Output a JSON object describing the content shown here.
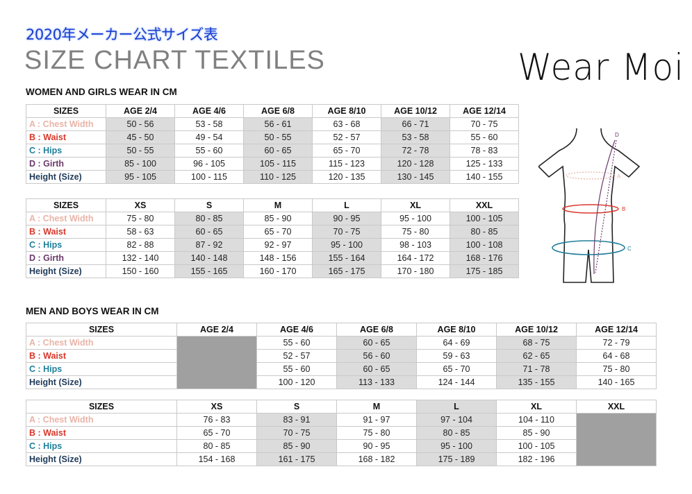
{
  "header": {
    "japanese_title": "2020年メーカー公式サイズ表",
    "title": "SIZE CHART TEXTILES",
    "logo": "Wear Moi"
  },
  "colors": {
    "chest": "#e8b4a8",
    "waist": "#d9372a",
    "hips": "#1f7f9a",
    "girth": "#6b3a6b",
    "height": "#1f3a5a",
    "shade": "#dcdcdc",
    "unavailable": "#a0a0a0"
  },
  "diagram": {
    "labels": [
      "A",
      "B",
      "C",
      "D"
    ]
  },
  "women": {
    "heading": "WOMEN AND GIRLS WEAR IN CM",
    "tables": [
      {
        "headers": [
          "SIZES",
          "AGE 2/4",
          "AGE 4/6",
          "AGE 6/8",
          "AGE 8/10",
          "AGE 10/12",
          "AGE 12/14"
        ],
        "shaded_columns": [
          1,
          3,
          5
        ],
        "shaded_header": [],
        "unavailable_columns": [],
        "rows": [
          {
            "key": "chest",
            "label": "A : Chest Width",
            "values": [
              "50 - 56",
              "53 - 58",
              "56 - 61",
              "63 - 68",
              "66 - 71",
              "70 - 75"
            ]
          },
          {
            "key": "waist",
            "label": "B : Waist",
            "values": [
              "45 - 50",
              "49  - 54",
              "50 - 55",
              "52 - 57",
              "53 - 58",
              "55 - 60"
            ]
          },
          {
            "key": "hips",
            "label": "C : Hips",
            "values": [
              "50 - 55",
              "55 - 60",
              "60 - 65",
              "65 - 70",
              "72 - 78",
              "78 - 83"
            ]
          },
          {
            "key": "girth",
            "label": "D : Girth",
            "values": [
              "85 - 100",
              "96 - 105",
              "105 - 115",
              "115 - 123",
              "120 - 128",
              "125 - 133"
            ]
          },
          {
            "key": "height",
            "label": "Height (Size)",
            "values": [
              "95 - 105",
              "100 - 115",
              "110 - 125",
              "120 - 135",
              "130 - 145",
              "140 - 155"
            ]
          }
        ]
      },
      {
        "headers": [
          "SIZES",
          "XS",
          "S",
          "M",
          "L",
          "XL",
          "XXL"
        ],
        "shaded_columns": [
          2,
          4,
          6
        ],
        "shaded_header": [],
        "unavailable_columns": [],
        "rows": [
          {
            "key": "chest",
            "label": "A : Chest Width",
            "values": [
              "75 - 80",
              "80 - 85",
              "85 - 90",
              "90 - 95",
              "95 - 100",
              "100 - 105"
            ]
          },
          {
            "key": "waist",
            "label": "B : Waist",
            "values": [
              "58 - 63",
              "60 - 65",
              "65 - 70",
              "70 - 75",
              "75 - 80",
              "80 - 85"
            ]
          },
          {
            "key": "hips",
            "label": "C : Hips",
            "values": [
              "82 - 88",
              "87 - 92",
              "92 - 97",
              "95 - 100",
              "98 - 103",
              "100 - 108"
            ]
          },
          {
            "key": "girth",
            "label": "D : Girth",
            "values": [
              "132 - 140",
              "140 - 148",
              "148 - 156",
              "155 - 164",
              "164 - 172",
              "168 - 176"
            ]
          },
          {
            "key": "height",
            "label": "Height (Size)",
            "values": [
              "150 - 160",
              "155 - 165",
              "160 - 170",
              "165 - 175",
              "170 - 180",
              "175 - 185"
            ]
          }
        ]
      }
    ]
  },
  "men": {
    "heading": "MEN AND BOYS WEAR IN CM",
    "tables": [
      {
        "headers": [
          "SIZES",
          "AGE 2/4",
          "AGE 4/6",
          "AGE 6/8",
          "AGE 8/10",
          "AGE 10/12",
          "AGE 12/14"
        ],
        "shaded_columns": [
          3,
          5
        ],
        "shaded_header": [],
        "unavailable_columns": [
          1
        ],
        "rows": [
          {
            "key": "chest",
            "label": "A : Chest Width",
            "values": [
              "",
              "55 - 60",
              "60 - 65",
              "64 - 69",
              "68 - 75",
              "72 - 79"
            ]
          },
          {
            "key": "waist",
            "label": "B : Waist",
            "values": [
              "",
              "52 - 57",
              "56 - 60",
              "59 - 63",
              "62 - 65",
              "64 - 68"
            ]
          },
          {
            "key": "hips",
            "label": "C : Hips",
            "values": [
              "",
              "55 - 60",
              "60 - 65",
              "65 - 70",
              "71 - 78",
              "75 - 80"
            ]
          },
          {
            "key": "height",
            "label": "Height (Size)",
            "values": [
              "",
              "100 - 120",
              "113 - 133",
              "124 - 144",
              "135 - 155",
              "140 - 165"
            ]
          }
        ]
      },
      {
        "headers": [
          "SIZES",
          "XS",
          "S",
          "M",
          "L",
          "XL",
          "XXL"
        ],
        "shaded_columns": [
          2,
          4
        ],
        "shaded_header": [
          4
        ],
        "unavailable_columns": [
          6
        ],
        "rows": [
          {
            "key": "chest",
            "label": "A : Chest Width",
            "values": [
              "76 - 83",
              "83 - 91",
              "91 - 97",
              "97 - 104",
              "104 - 110",
              ""
            ]
          },
          {
            "key": "waist",
            "label": "B : Waist",
            "values": [
              "65 - 70",
              "70 - 75",
              "75 - 80",
              "80 - 85",
              "85 - 90",
              ""
            ]
          },
          {
            "key": "hips",
            "label": "C : Hips",
            "values": [
              "80 - 85",
              "85 - 90",
              "90 - 95",
              "95 - 100",
              "100 - 105",
              ""
            ]
          },
          {
            "key": "height",
            "label": "Height (Size)",
            "values": [
              "154 - 168",
              "161 - 175",
              "168 - 182",
              "175 - 189",
              "182 - 196",
              ""
            ]
          }
        ]
      }
    ]
  }
}
